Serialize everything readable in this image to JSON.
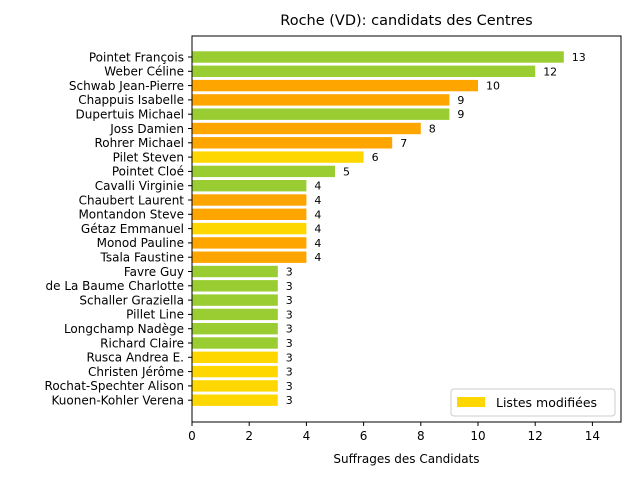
{
  "chart_data": {
    "type": "bar",
    "orientation": "horizontal",
    "title": "Roche (VD): candidats des Centres",
    "xlabel": "Suffrages des Candidats",
    "ylabel": "",
    "xlim": [
      0,
      15
    ],
    "xticks": [
      0,
      2,
      4,
      6,
      8,
      10,
      12,
      14
    ],
    "grid": false,
    "legend": {
      "placement": "bottom-right",
      "entries": [
        {
          "label": "Listes modifiées",
          "color": "#FFD700"
        }
      ]
    },
    "colors": {
      "green": "#9ACD32",
      "orange": "#FFA500",
      "yellow": "#FFD700"
    },
    "bars": [
      {
        "name": "Pointet François",
        "value": 13,
        "color": "green"
      },
      {
        "name": "Weber Céline",
        "value": 12,
        "color": "green"
      },
      {
        "name": "Schwab Jean-Pierre",
        "value": 10,
        "color": "orange"
      },
      {
        "name": "Chappuis Isabelle",
        "value": 9,
        "color": "orange"
      },
      {
        "name": "Dupertuis Michael",
        "value": 9,
        "color": "green"
      },
      {
        "name": "Joss Damien",
        "value": 8,
        "color": "orange"
      },
      {
        "name": "Rohrer Michael",
        "value": 7,
        "color": "orange"
      },
      {
        "name": "Pilet Steven",
        "value": 6,
        "color": "yellow"
      },
      {
        "name": "Pointet Cloé",
        "value": 5,
        "color": "green"
      },
      {
        "name": "Cavalli Virginie",
        "value": 4,
        "color": "green"
      },
      {
        "name": "Chaubert Laurent",
        "value": 4,
        "color": "orange"
      },
      {
        "name": "Montandon Steve",
        "value": 4,
        "color": "orange"
      },
      {
        "name": "Gétaz Emmanuel",
        "value": 4,
        "color": "yellow"
      },
      {
        "name": "Monod Pauline",
        "value": 4,
        "color": "orange"
      },
      {
        "name": "Tsala Faustine",
        "value": 4,
        "color": "orange"
      },
      {
        "name": "Favre Guy",
        "value": 3,
        "color": "green"
      },
      {
        "name": "de La Baume Charlotte",
        "value": 3,
        "color": "green"
      },
      {
        "name": "Schaller Graziella",
        "value": 3,
        "color": "green"
      },
      {
        "name": "Pillet Line",
        "value": 3,
        "color": "green"
      },
      {
        "name": "Longchamp Nadège",
        "value": 3,
        "color": "green"
      },
      {
        "name": "Richard Claire",
        "value": 3,
        "color": "green"
      },
      {
        "name": "Rusca Andrea E.",
        "value": 3,
        "color": "yellow"
      },
      {
        "name": "Christen Jérôme",
        "value": 3,
        "color": "yellow"
      },
      {
        "name": "Rochat-Spechter Alison",
        "value": 3,
        "color": "yellow"
      },
      {
        "name": "Kuonen-Kohler Verena",
        "value": 3,
        "color": "yellow"
      }
    ]
  }
}
